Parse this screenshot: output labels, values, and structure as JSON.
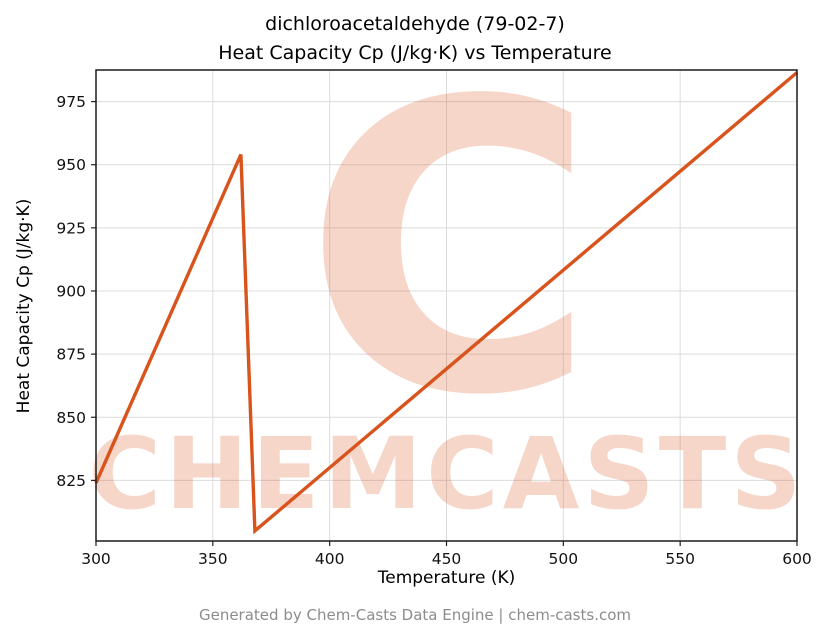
{
  "header": {
    "title_line1": "dichloroacetaldehyde (79-02-7)",
    "title_line2": "Heat Capacity Cp (J/kg·K) vs Temperature"
  },
  "watermark": {
    "logo": "C",
    "text": "CHEMCASTS"
  },
  "footer": {
    "text": "Generated by Chem-Casts Data Engine | chem-casts.com"
  },
  "chart_data": {
    "type": "line",
    "title": "dichloroacetaldehyde (79-02-7) — Heat Capacity Cp (J/kg·K) vs Temperature",
    "xlabel": "Temperature (K)",
    "ylabel": "Heat Capacity Cp (J/kg·K)",
    "xlim": [
      300,
      600
    ],
    "ylim": [
      801,
      987.5
    ],
    "xticks": [
      300,
      350,
      400,
      450,
      500,
      550,
      600
    ],
    "yticks": [
      825,
      850,
      875,
      900,
      925,
      950,
      975
    ],
    "grid": true,
    "legend": "none",
    "colors": {
      "line": "#d9531d",
      "watermark": "#d9531d",
      "grid": "#dcdcdc",
      "frame": "#1a1a1a"
    },
    "series": [
      {
        "name": "Heat Capacity Cp (J/kg·K)",
        "points": [
          [
            300,
            824
          ],
          [
            362,
            954
          ],
          [
            368,
            805
          ],
          [
            600,
            986.5
          ]
        ]
      }
    ]
  }
}
